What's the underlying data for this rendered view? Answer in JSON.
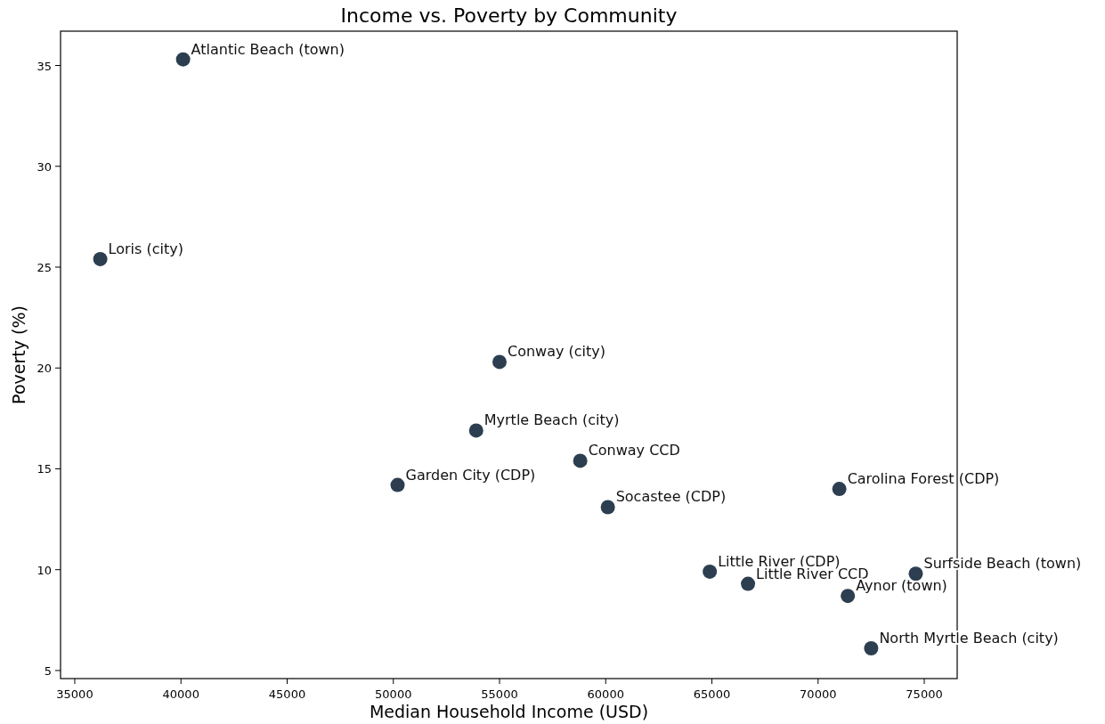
{
  "chart_data": {
    "type": "scatter",
    "title": "Income vs. Poverty by Community",
    "xlabel": "Median Household Income (USD)",
    "ylabel": "Poverty (%)",
    "xlim": [
      34330,
      76550
    ],
    "ylim": [
      4.6,
      36.7
    ],
    "xticks": [
      35000,
      40000,
      45000,
      50000,
      55000,
      60000,
      65000,
      70000,
      75000
    ],
    "yticks": [
      5,
      10,
      15,
      20,
      25,
      30,
      35
    ],
    "marker": "circle",
    "series": [
      {
        "color": "#2c3e50",
        "x": [
          40100,
          36200,
          55000,
          53900,
          58800,
          50200,
          60100,
          71000,
          64900,
          66700,
          74600,
          71400,
          72500
        ],
        "values": [
          35.3,
          25.4,
          20.3,
          16.9,
          15.4,
          14.2,
          13.1,
          14.0,
          9.9,
          9.3,
          9.8,
          8.7,
          6.1
        ]
      }
    ],
    "annotations": [
      {
        "text": "Atlantic Beach (town)",
        "x": 40100,
        "y": 35.3
      },
      {
        "text": "Loris (city)",
        "x": 36200,
        "y": 25.4
      },
      {
        "text": "Conway (city)",
        "x": 55000,
        "y": 20.3
      },
      {
        "text": "Myrtle Beach (city)",
        "x": 53900,
        "y": 16.9
      },
      {
        "text": "Conway CCD",
        "x": 58800,
        "y": 15.4
      },
      {
        "text": "Garden City (CDP)",
        "x": 50200,
        "y": 14.2
      },
      {
        "text": "Socastee (CDP)",
        "x": 60100,
        "y": 13.1
      },
      {
        "text": "Carolina Forest (CDP)",
        "x": 71000,
        "y": 14.0
      },
      {
        "text": "Little River (CDP)",
        "x": 64900,
        "y": 9.9
      },
      {
        "text": "Little River CCD",
        "x": 66700,
        "y": 9.3
      },
      {
        "text": "Surfside Beach (town)",
        "x": 74600,
        "y": 9.8
      },
      {
        "text": "Aynor (town)",
        "x": 71400,
        "y": 8.7
      },
      {
        "text": "North Myrtle Beach (city)",
        "x": 72500,
        "y": 6.1
      }
    ]
  }
}
